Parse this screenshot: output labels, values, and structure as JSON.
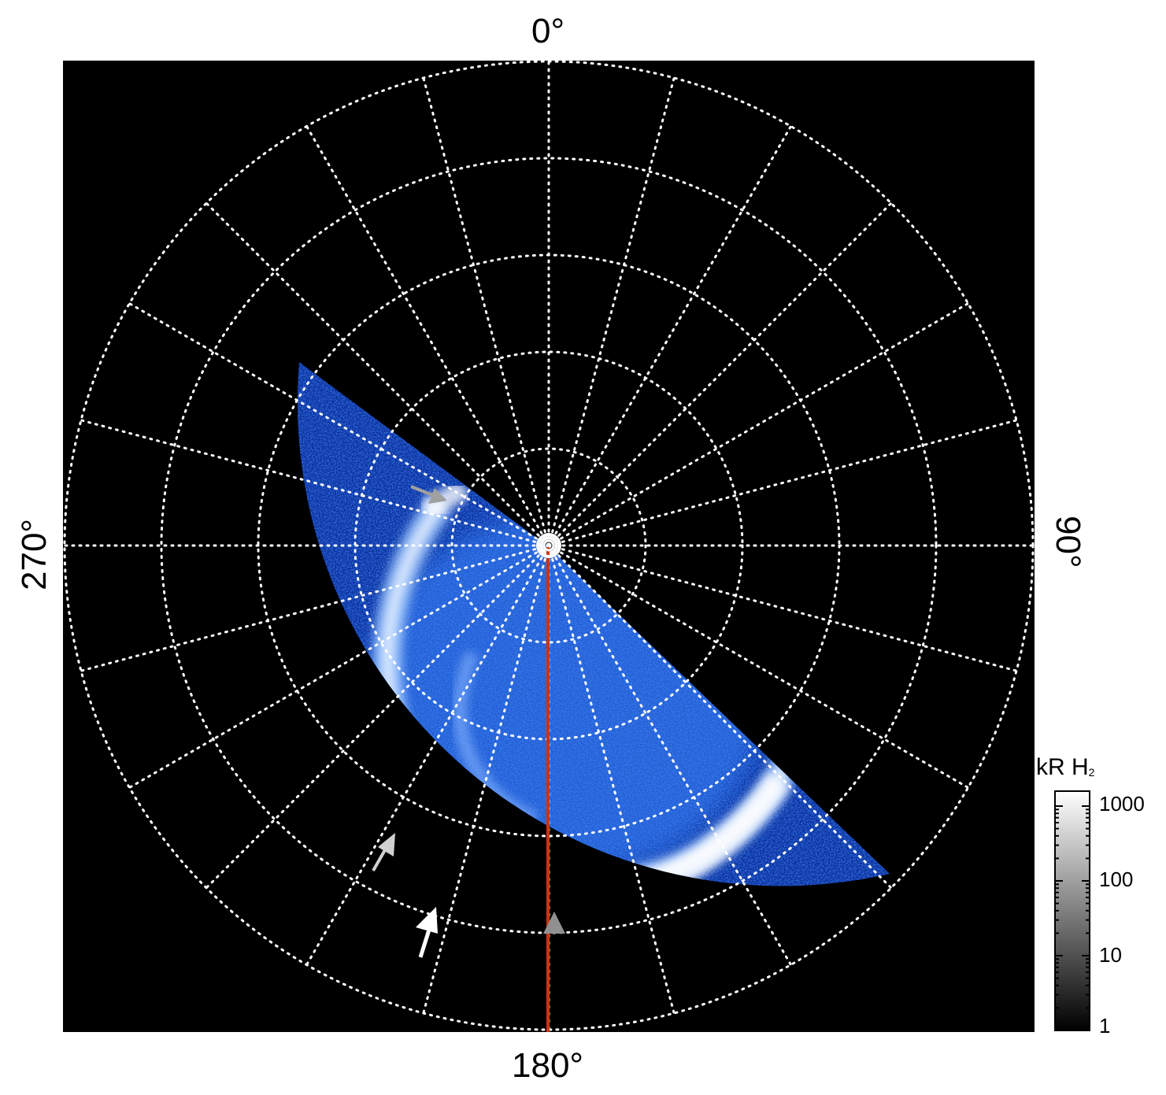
{
  "axes": {
    "top_label": "0°",
    "right_label": "90°",
    "bottom_label": "180°",
    "left_label": "270°"
  },
  "colorbar": {
    "title": "kR H",
    "title_subscript": "2",
    "ticks": [
      "1000",
      "100",
      "10",
      "1"
    ],
    "scale": "log"
  },
  "colors": {
    "background": "#000000",
    "grid": "#ffffff",
    "emission": "#2a6cff",
    "meridian_line": "#cc3311",
    "arrow_gray": "#a0a0a0",
    "arrow_white": "#ffffff"
  },
  "grid": {
    "style": "dotted",
    "meridians_deg_step": 15,
    "rings": 5
  }
}
